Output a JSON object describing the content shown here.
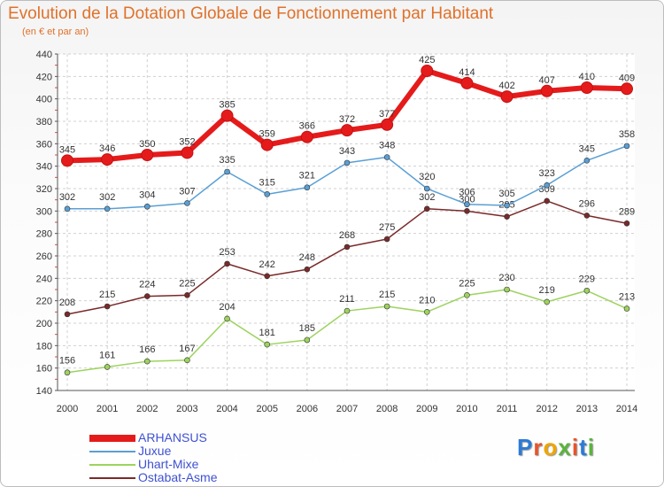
{
  "title": "Evolution de la Dotation Globale de Fonctionnement par Habitant",
  "subtitle": "(en € et par an)",
  "logo": "Proxiti",
  "chart_data": {
    "type": "line",
    "categories": [
      "2000",
      "2001",
      "2002",
      "2003",
      "2004",
      "2005",
      "2006",
      "2007",
      "2008",
      "2009",
      "2010",
      "2011",
      "2012",
      "2013",
      "2014"
    ],
    "ylim": [
      140,
      440
    ],
    "yticks": [
      140,
      160,
      180,
      200,
      220,
      240,
      260,
      280,
      300,
      320,
      340,
      360,
      380,
      400,
      420,
      440
    ],
    "grid": true,
    "legend_position": "bottom-left",
    "series": [
      {
        "name": "ARHANSUS",
        "color": "#e51b1b",
        "values": [
          345,
          346,
          350,
          352,
          385,
          359,
          366,
          372,
          377,
          425,
          414,
          402,
          407,
          410,
          409
        ]
      },
      {
        "name": "Juxue",
        "color": "#5a9fd4",
        "values": [
          302,
          302,
          304,
          307,
          335,
          315,
          321,
          343,
          348,
          320,
          306,
          305,
          323,
          345,
          358
        ]
      },
      {
        "name": "Uhart-Mixe",
        "color": "#9dd35e",
        "values": [
          156,
          161,
          166,
          167,
          204,
          181,
          185,
          211,
          215,
          210,
          225,
          230,
          219,
          229,
          213
        ]
      },
      {
        "name": "Ostabat-Asme",
        "color": "#7a2a2a",
        "values": [
          208,
          215,
          224,
          225,
          253,
          242,
          248,
          268,
          275,
          302,
          300,
          295,
          309,
          296,
          289
        ]
      }
    ]
  }
}
